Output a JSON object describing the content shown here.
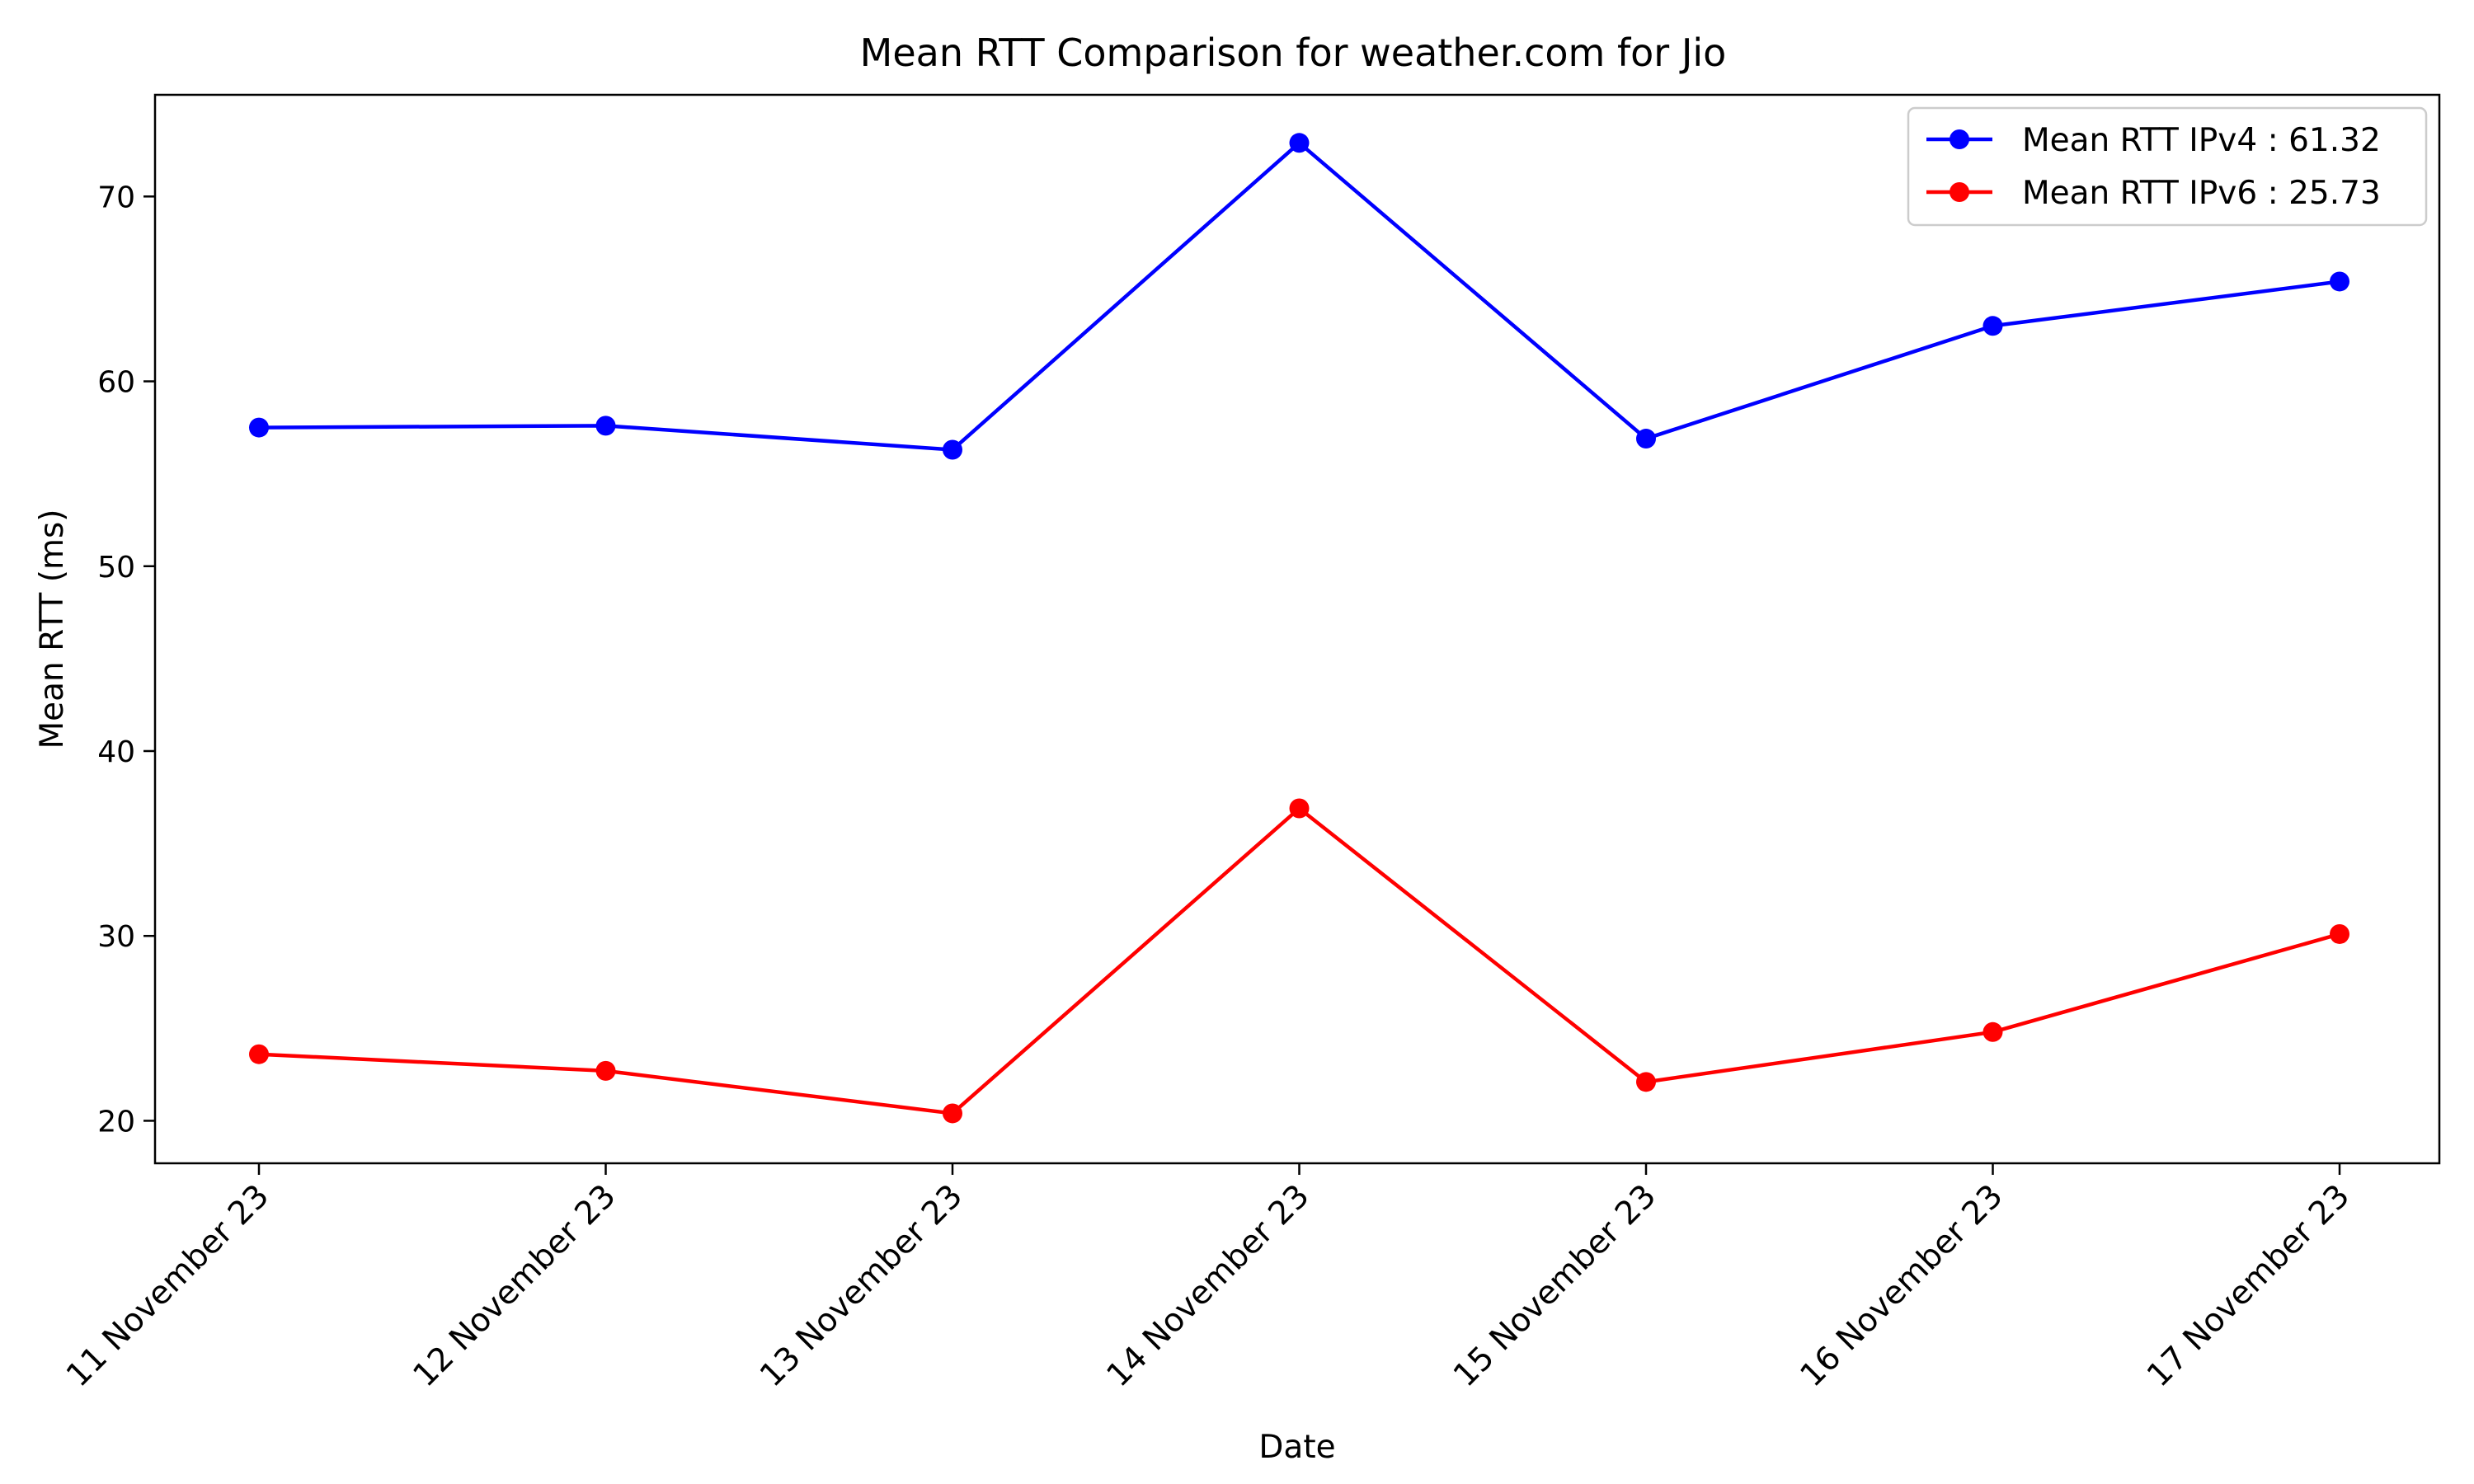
{
  "chart_data": {
    "type": "line",
    "title": "Mean RTT Comparison for weather.com for Jio",
    "xlabel": "Date",
    "ylabel": "Mean RTT (ms)",
    "categories": [
      "11 November 23",
      "12 November 23",
      "13 November 23",
      "14 November 23",
      "15 November 23",
      "16 November 23",
      "17 November 23"
    ],
    "ylim": [
      17.7,
      75.5
    ],
    "yticks": [
      20,
      30,
      40,
      50,
      60,
      70
    ],
    "grid": false,
    "legend_position": "top-right",
    "series": [
      {
        "name": "Mean RTT IPv4 : 61.32",
        "color": "#0000ff",
        "values": [
          57.5,
          57.6,
          56.3,
          72.9,
          56.9,
          63.0,
          65.4
        ]
      },
      {
        "name": "Mean RTT IPv6 : 25.73",
        "color": "#ff0000",
        "values": [
          23.6,
          22.7,
          20.4,
          36.9,
          22.1,
          24.8,
          30.1
        ]
      }
    ]
  }
}
